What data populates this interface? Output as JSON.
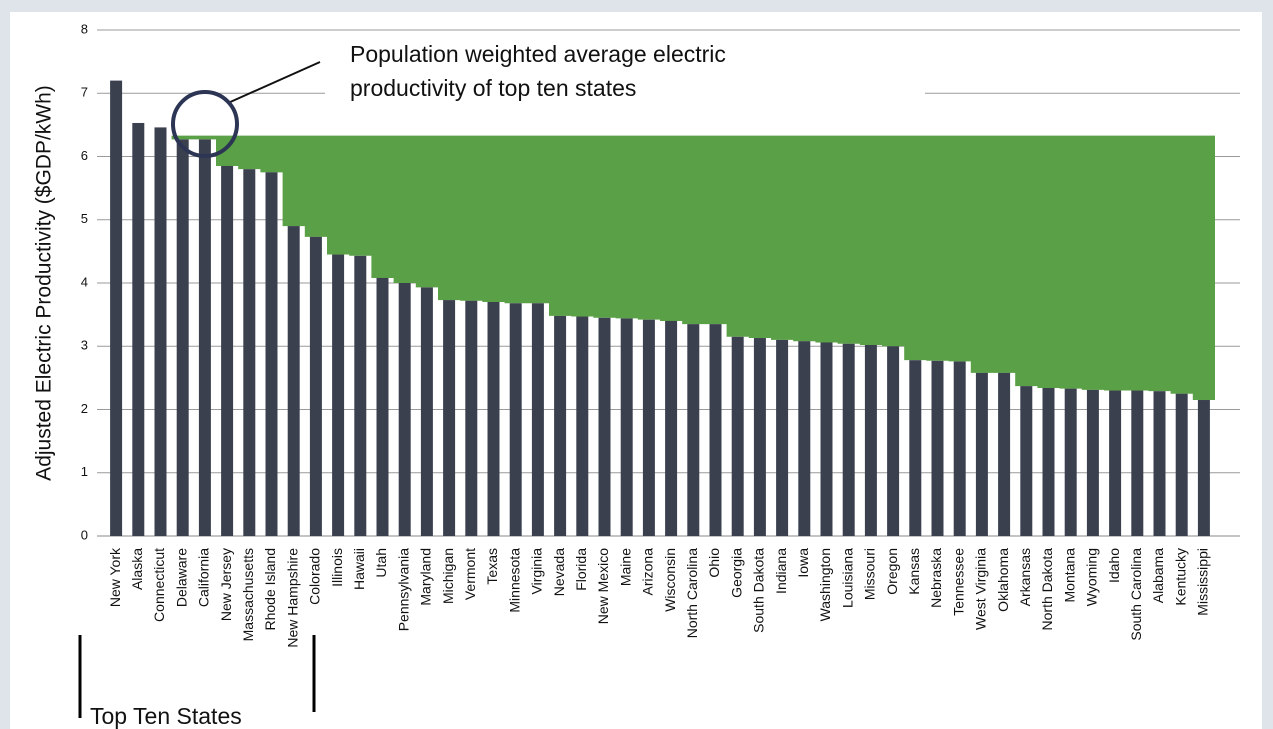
{
  "chart_data": {
    "type": "bar",
    "y_label": "Adjusted Electric Productivity ($GDP/kWh)",
    "annotation": [
      "Population weighted average electric",
      "productivity of top ten states"
    ],
    "bracket_label": "Top Ten States",
    "categories": [
      "New York",
      "Alaska",
      "Connecticut",
      "Delaware",
      "California",
      "New Jersey",
      "Massachusetts",
      "Rhode Island",
      "New Hampshire",
      "Colorado",
      "Illinois",
      "Hawaii",
      "Utah",
      "Pennsylvania",
      "Maryland",
      "Michigan",
      "Vermont",
      "Texas",
      "Minnesota",
      "Virginia",
      "Nevada",
      "Florida",
      "New Mexico",
      "Maine",
      "Arizona",
      "Wisconsin",
      "North Carolina",
      "Ohio",
      "Georgia",
      "South Dakota",
      "Indiana",
      "Iowa",
      "Washington",
      "Louisiana",
      "Missouri",
      "Oregon",
      "Kansas",
      "Nebraska",
      "Tennessee",
      "West Virginia",
      "Oklahoma",
      "Arkansas",
      "North Dakota",
      "Montana",
      "Wyoming",
      "Idaho",
      "South Carolina",
      "Alabama",
      "Kentucky",
      "Mississippi"
    ],
    "values": [
      7.2,
      6.53,
      6.46,
      6.27,
      6.27,
      5.85,
      5.8,
      5.75,
      4.9,
      4.73,
      4.45,
      4.43,
      4.08,
      4.0,
      3.93,
      3.73,
      3.72,
      3.7,
      3.68,
      3.68,
      3.48,
      3.47,
      3.45,
      3.44,
      3.42,
      3.4,
      3.35,
      3.35,
      3.15,
      3.13,
      3.1,
      3.08,
      3.06,
      3.04,
      3.02,
      3.0,
      2.78,
      2.77,
      2.76,
      2.58,
      2.58,
      2.37,
      2.34,
      2.33,
      2.31,
      2.3,
      2.3,
      2.29,
      2.25,
      2.15
    ],
    "color": "#3b404f",
    "average": 6.33,
    "area_color": "#5aa046",
    "ylim": [
      0,
      8
    ],
    "yticks": [
      0,
      1,
      2,
      3,
      4,
      5,
      6,
      7,
      8
    ],
    "grid": true
  }
}
